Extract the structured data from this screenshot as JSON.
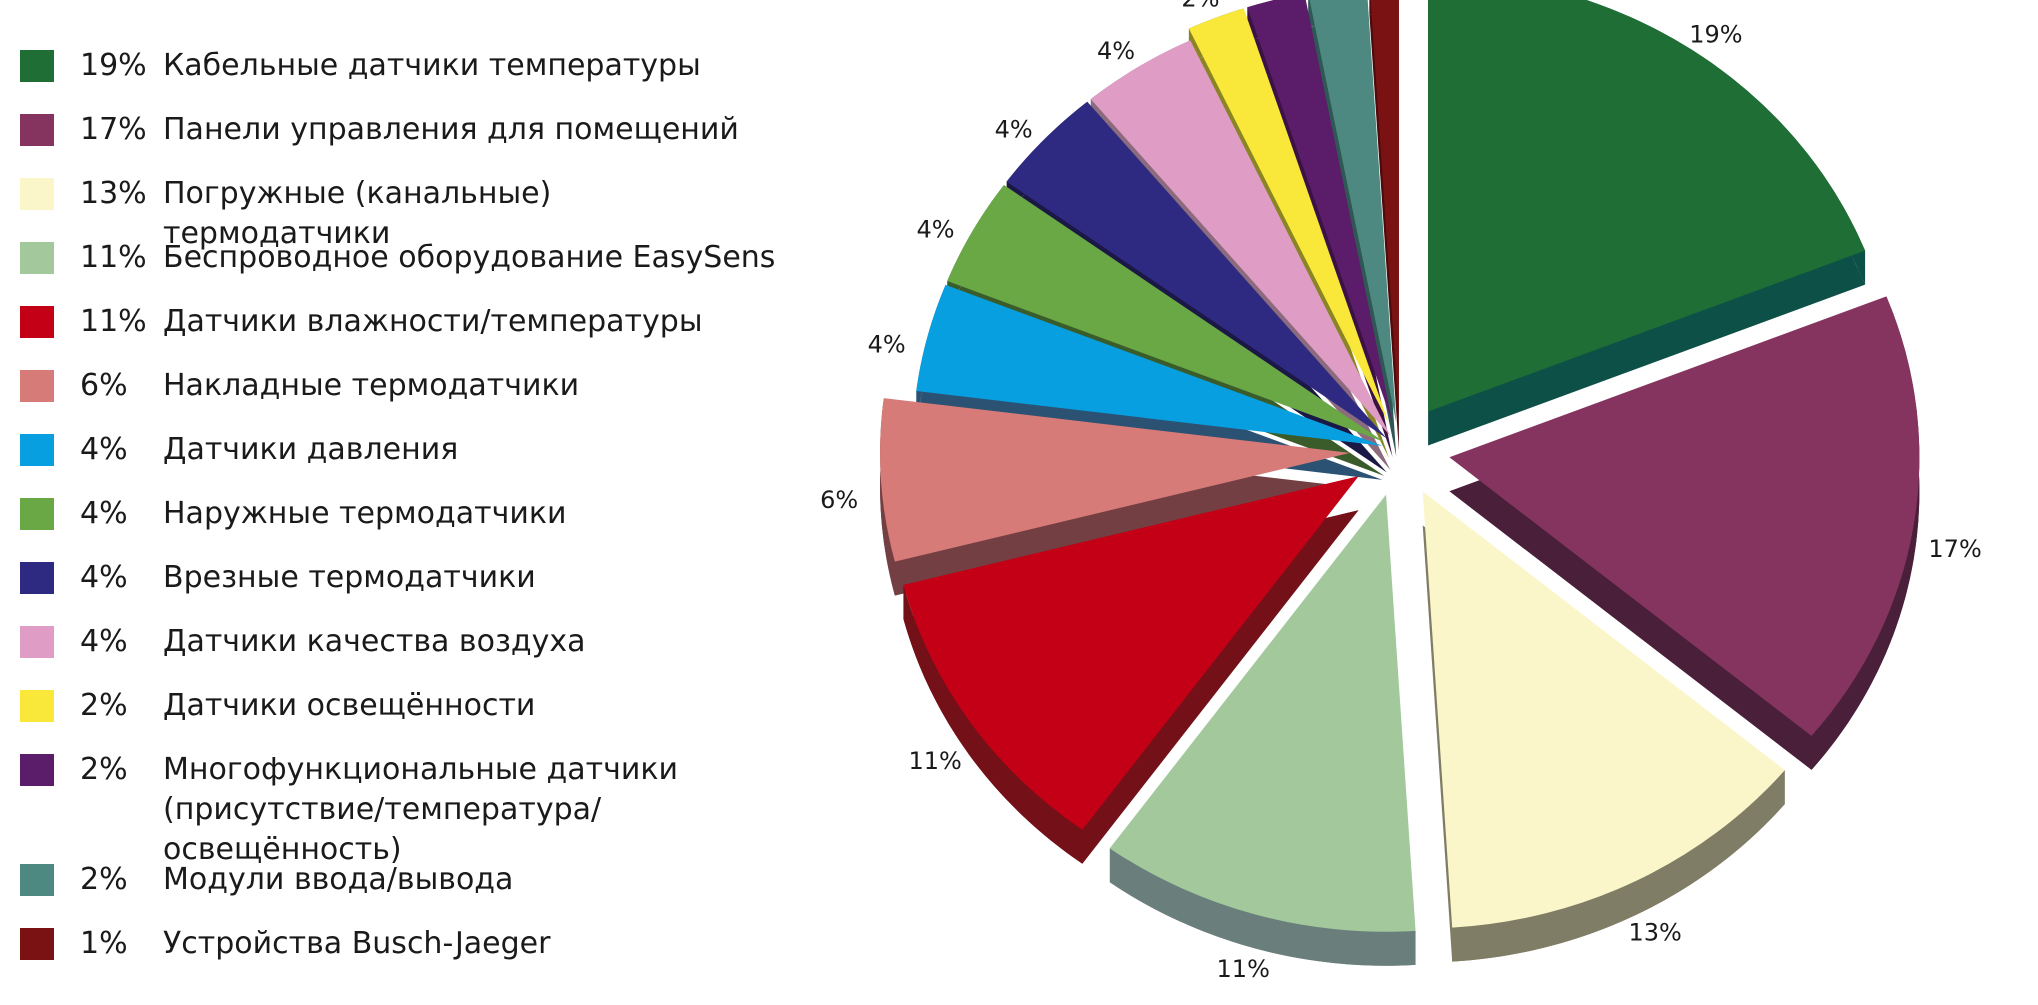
{
  "chart_data": {
    "type": "pie",
    "style": "3d-exploded",
    "legend_position": "left",
    "slices": [
      {
        "percent_label": "19%",
        "value": 19,
        "label": "Кабельные датчики температуры",
        "color": "#1e6e35",
        "side_color": "#0d5047"
      },
      {
        "percent_label": "17%",
        "value": 17,
        "label": "Панели управления для помещений",
        "color": "#85345f",
        "side_color": "#4a1f3a"
      },
      {
        "percent_label": "13%",
        "value": 13,
        "label": "Погружные (канальные) термодатчики",
        "color": "#fbf6c9",
        "side_color": "#807d66"
      },
      {
        "percent_label": "11%",
        "value": 11,
        "label": "Беспроводное оборудование EasySens",
        "color": "#a2c89c",
        "side_color": "#6a7f7c"
      },
      {
        "percent_label": "11%",
        "value": 11,
        "label": "Датчики влажности/температуры",
        "color": "#c30015",
        "side_color": "#731018"
      },
      {
        "percent_label": "6%",
        "value": 6,
        "label": "Накладные термодатчики",
        "color": "#d67b78",
        "side_color": "#733f42"
      },
      {
        "percent_label": "4%",
        "value": 4,
        "label": "Датчики давления",
        "color": "#079fe0",
        "side_color": "#2b5272"
      },
      {
        "percent_label": "4%",
        "value": 4,
        "label": "Наружные термодатчики",
        "color": "#69a845",
        "side_color": "#3a5c2a"
      },
      {
        "percent_label": "4%",
        "value": 4,
        "label": "Врезные термодатчики",
        "color": "#2e2a82",
        "side_color": "#1b1845"
      },
      {
        "percent_label": "4%",
        "value": 4,
        "label": "Датчики качества воздуха",
        "color": "#df9cc5",
        "side_color": "#8c6b7e"
      },
      {
        "percent_label": "2%",
        "value": 2,
        "label": "Датчики освещённости",
        "color": "#f9e83a",
        "side_color": "#8a8424"
      },
      {
        "percent_label": "2%",
        "value": 2,
        "label": "Многофункциональные датчики\n(присутствие/температура/освещённость)",
        "color": "#5b1c6a",
        "side_color": "#3a1344"
      },
      {
        "percent_label": "2%",
        "value": 2,
        "label": "Модули ввода/вывода",
        "color": "#4e8981",
        "side_color": "#2f5854"
      },
      {
        "percent_label": "1%",
        "value": 1,
        "label": "Устройства Busch-Jaeger",
        "color": "#7a1214",
        "side_color": "#4d0b0c"
      }
    ]
  }
}
